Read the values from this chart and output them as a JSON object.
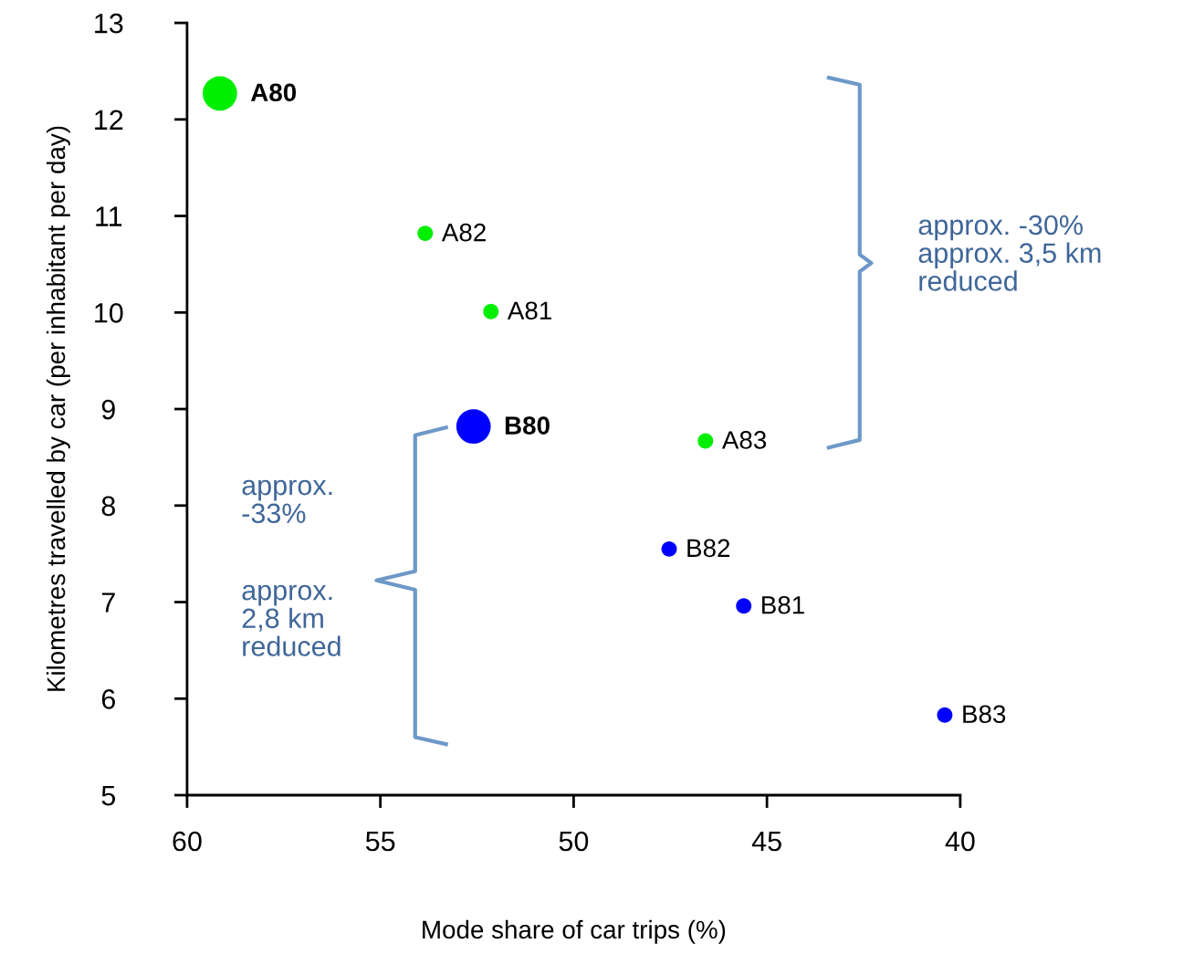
{
  "chart_data": {
    "type": "bubble",
    "xlabel": "Mode share of car trips (%)",
    "ylabel": "Kilometres travelled by car (per inhabitant per day)",
    "xlim": [
      60,
      40
    ],
    "xticks": [
      60,
      55,
      50,
      45,
      40
    ],
    "ylim": [
      5,
      13
    ],
    "yticks": [
      5,
      6,
      7,
      8,
      9,
      10,
      11,
      12,
      13
    ],
    "grid": false,
    "series": [
      {
        "color": "#00ee00",
        "x": [
          59.15,
          52.14,
          53.84,
          46.59
        ],
        "values": [
          12.27,
          10.01,
          10.82,
          8.67
        ],
        "sizes": [
          1,
          0.2,
          0.2,
          0.2
        ]
      },
      {
        "color": "#0000ff",
        "x": [
          52.59,
          45.6,
          47.53,
          40.4
        ],
        "values": [
          8.82,
          6.96,
          7.55,
          5.83
        ],
        "sizes": [
          1,
          0.2,
          0.2,
          0.2
        ]
      }
    ],
    "annotations": [
      {
        "text": "A80",
        "x": 59.15,
        "y": 12.27
      },
      {
        "text": "A81",
        "x": 52.14,
        "y": 10.01
      },
      {
        "text": "A82",
        "x": 53.84,
        "y": 10.82
      },
      {
        "text": "A83",
        "x": 46.59,
        "y": 8.67
      },
      {
        "text": "B80",
        "x": 52.59,
        "y": 8.82
      },
      {
        "text": "B81",
        "x": 45.6,
        "y": 6.96
      },
      {
        "text": "B82",
        "x": 47.53,
        "y": 7.55
      },
      {
        "text": "B83",
        "x": 40.4,
        "y": 5.83
      },
      "approx. -30%\napprox. 3,5 km\nreduced",
      "approx.\n-33%",
      "approx.\n2,8 km\nreduced"
    ]
  }
}
